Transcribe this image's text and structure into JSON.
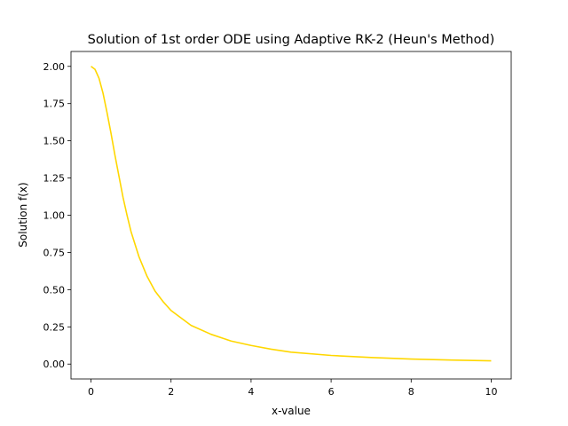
{
  "chart_data": {
    "type": "line",
    "title": "Solution of 1st order ODE using Adaptive RK-2 (Heun's Method)",
    "xlabel": "x-value",
    "ylabel": "Solution f(x)",
    "xlim": [
      -0.5,
      10.5
    ],
    "ylim": [
      -0.1,
      2.1
    ],
    "xticks": [
      0,
      2,
      4,
      6,
      8,
      10
    ],
    "xtick_labels": [
      "0",
      "2",
      "4",
      "6",
      "8",
      "10"
    ],
    "yticks": [
      0.0,
      0.25,
      0.5,
      0.75,
      1.0,
      1.25,
      1.5,
      1.75,
      2.0
    ],
    "ytick_labels": [
      "0.00",
      "0.25",
      "0.50",
      "0.75",
      "1.00",
      "1.25",
      "1.50",
      "1.75",
      "2.00"
    ],
    "grid": false,
    "legend": "none",
    "series": [
      {
        "color": "#ffd700",
        "x": [
          0,
          0.1,
          0.2,
          0.3,
          0.4,
          0.5,
          0.6,
          0.7,
          0.8,
          0.9,
          1.0,
          1.2,
          1.4,
          1.6,
          1.8,
          2.0,
          2.5,
          3.0,
          3.5,
          4.0,
          4.5,
          5.0,
          6.0,
          7.0,
          8.0,
          9.0,
          10.0
        ],
        "y": [
          2.0,
          1.98,
          1.92,
          1.82,
          1.69,
          1.55,
          1.4,
          1.26,
          1.12,
          1.0,
          0.89,
          0.72,
          0.59,
          0.49,
          0.42,
          0.36,
          0.26,
          0.2,
          0.155,
          0.125,
          0.1,
          0.08,
          0.058,
          0.044,
          0.034,
          0.027,
          0.022
        ]
      }
    ]
  }
}
